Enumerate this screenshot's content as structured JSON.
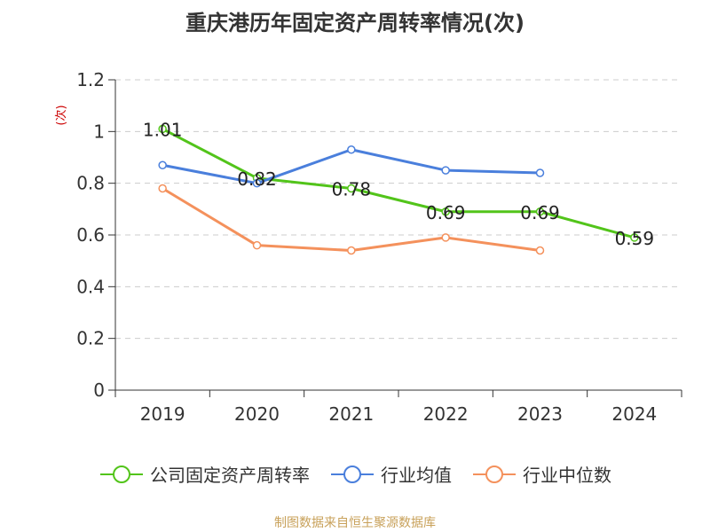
{
  "chart_data": {
    "type": "line",
    "title": "重庆港历年固定资产周转率情况(次)",
    "ylabel": "(次)",
    "categories": [
      "2019",
      "2020",
      "2021",
      "2022",
      "2023",
      "2024"
    ],
    "yticks": [
      "0",
      "0.2",
      "0.4",
      "0.6",
      "0.8",
      "1",
      "1.2"
    ],
    "ylim": [
      0,
      1.2
    ],
    "grid": true,
    "legend_position": "bottom",
    "series": [
      {
        "name": "公司固定资产周转率",
        "color": "#52c41a",
        "values": [
          1.01,
          0.82,
          0.78,
          0.69,
          0.69,
          0.59
        ],
        "labels": [
          "1.01",
          "0.82",
          "0.78",
          "0.69",
          "0.69",
          "0.59"
        ]
      },
      {
        "name": "行业均值",
        "color": "#4a7fdc",
        "values": [
          0.87,
          0.8,
          0.93,
          0.85,
          0.84,
          null
        ]
      },
      {
        "name": "行业中位数",
        "color": "#f4915c",
        "values": [
          0.78,
          0.56,
          0.54,
          0.59,
          0.54,
          null
        ]
      }
    ]
  },
  "source": "制图数据来自恒生聚源数据库"
}
